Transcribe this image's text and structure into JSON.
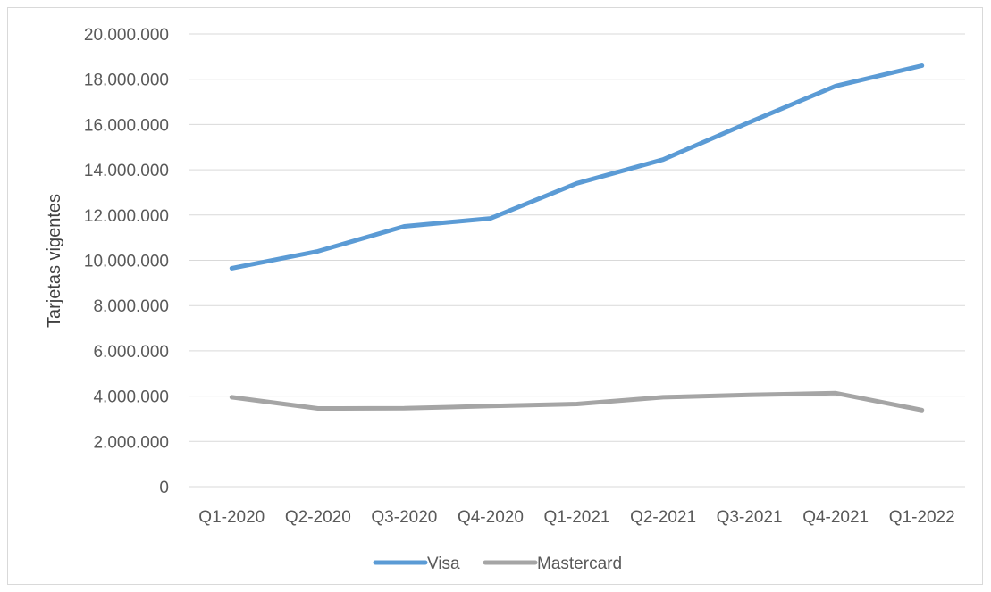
{
  "chart_data": {
    "type": "line",
    "title": "",
    "xlabel": "",
    "ylabel": "Tarjetas vigentes",
    "ylim": [
      0,
      20000000
    ],
    "y_ticks": [
      0,
      2000000,
      4000000,
      6000000,
      8000000,
      10000000,
      12000000,
      14000000,
      16000000,
      18000000,
      20000000
    ],
    "y_tick_labels": [
      "0",
      "2.000.000",
      "4.000.000",
      "6.000.000",
      "8.000.000",
      "10.000.000",
      "12.000.000",
      "14.000.000",
      "16.000.000",
      "18.000.000",
      "20.000.000"
    ],
    "categories": [
      "Q1-2020",
      "Q2-2020",
      "Q3-2020",
      "Q4-2020",
      "Q1-2021",
      "Q2-2021",
      "Q3-2021",
      "Q4-2021",
      "Q1-2022"
    ],
    "grid": true,
    "legend_position": "bottom",
    "series": [
      {
        "name": "Visa",
        "color": "#5b9bd5",
        "values": [
          9650000,
          10400000,
          11500000,
          11850000,
          13400000,
          14450000,
          16100000,
          17700000,
          18600000
        ]
      },
      {
        "name": "Mastercard",
        "color": "#a5a5a5",
        "values": [
          3950000,
          3450000,
          3460000,
          3560000,
          3650000,
          3950000,
          4050000,
          4130000,
          3380000
        ]
      }
    ]
  }
}
